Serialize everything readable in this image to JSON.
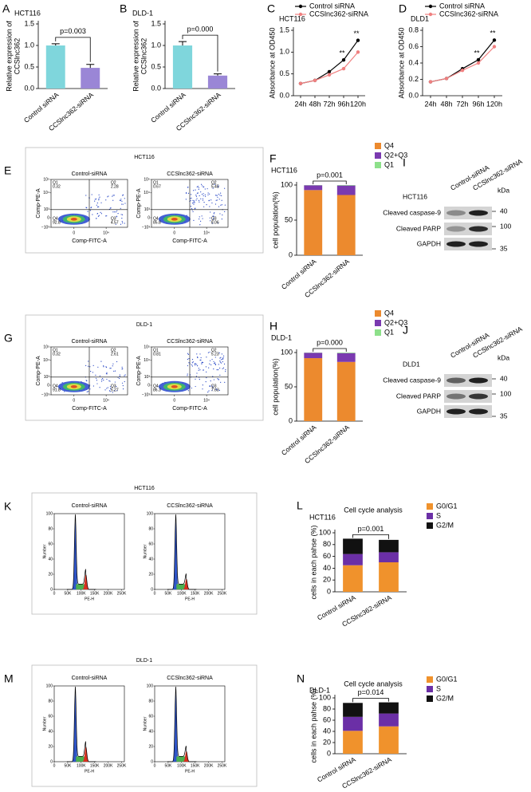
{
  "chart_data": [
    {
      "panel": "A",
      "type": "bar",
      "subtitle": "HCT116",
      "y_label": [
        "Relative expression of",
        "CCSlnc362"
      ],
      "categories": [
        "Control siRNA",
        "CCSlnc362-siRNA"
      ],
      "values": [
        1.0,
        0.48
      ],
      "errors": [
        0.04,
        0.08
      ],
      "colors": [
        "#7fd6dc",
        "#9a86d6"
      ],
      "ylim": [
        0,
        1.5
      ],
      "yticks": [
        {
          "value": 0,
          "label": "0.0"
        },
        {
          "value": 0.5,
          "label": "0.5"
        },
        {
          "value": 1,
          "label": "1.0"
        },
        {
          "value": 1.5,
          "label": "1.5"
        }
      ],
      "p_value": "p=0.003"
    },
    {
      "panel": "B",
      "type": "bar",
      "subtitle": "DLD-1",
      "y_label": [
        "Relative expression of",
        "CCSlnc362"
      ],
      "categories": [
        "Control siRNA",
        "CCSlnc362-siRNA"
      ],
      "values": [
        1.0,
        0.3
      ],
      "errors": [
        0.09,
        0.04
      ],
      "colors": [
        "#7fd6dc",
        "#9a86d6"
      ],
      "ylim": [
        0,
        1.5
      ],
      "yticks": [
        {
          "value": 0,
          "label": "0.0"
        },
        {
          "value": 0.5,
          "label": "0.5"
        },
        {
          "value": 1,
          "label": "1.0"
        },
        {
          "value": 1.5,
          "label": "1.5"
        }
      ],
      "p_value": "p=0.000"
    },
    {
      "panel": "C",
      "type": "line",
      "subtitle": "HCT116",
      "y_label": [
        "Absorbance at OD450"
      ],
      "categories": [
        "24h",
        "48h",
        "72h",
        "96h",
        "120h"
      ],
      "series": [
        {
          "name": "Control siRNA",
          "color": "#000000",
          "values": [
            0.28,
            0.35,
            0.55,
            0.82,
            1.27
          ]
        },
        {
          "name": "CCSlnc362-siRNA",
          "color": "#f08080",
          "values": [
            0.28,
            0.35,
            0.48,
            0.62,
            1.0
          ]
        }
      ],
      "significance": [
        null,
        null,
        null,
        "**",
        "**"
      ],
      "ylim": [
        0,
        1.5
      ],
      "yticks": [
        {
          "value": 0,
          "label": "0.0"
        },
        {
          "value": 0.5,
          "label": "0.5"
        },
        {
          "value": 1,
          "label": "1.0"
        },
        {
          "value": 1.5,
          "label": "1.5"
        }
      ]
    },
    {
      "panel": "D",
      "type": "line",
      "subtitle": "DLD1",
      "y_label": [
        "Absorbance at OD450"
      ],
      "categories": [
        "24h",
        "48h",
        "72h",
        "96h",
        "120h"
      ],
      "series": [
        {
          "name": "Control siRNA",
          "color": "#000000",
          "values": [
            0.17,
            0.21,
            0.33,
            0.44,
            0.68
          ]
        },
        {
          "name": "CCSlnc362-siRNA",
          "color": "#f08080",
          "values": [
            0.17,
            0.21,
            0.31,
            0.4,
            0.6
          ]
        }
      ],
      "significance": [
        null,
        null,
        null,
        "**",
        "**"
      ],
      "ylim": [
        0,
        0.8
      ],
      "yticks": [
        {
          "value": 0,
          "label": "0.0"
        },
        {
          "value": 0.2,
          "label": "0.2"
        },
        {
          "value": 0.4,
          "label": "0.4"
        },
        {
          "value": 0.6,
          "label": "0.6"
        },
        {
          "value": 0.8,
          "label": "0.8"
        }
      ]
    },
    {
      "panel": "F",
      "type": "stacked_bar",
      "subtitle": "HCT116",
      "y_label": [
        "cell population(%)"
      ],
      "categories": [
        "Control siRNA",
        "CCSlnc362-siRNA"
      ],
      "series": [
        {
          "name": "Q4",
          "color": "#ec8a2e",
          "values": [
            92.8,
            85.8
          ]
        },
        {
          "name": "Q2+Q3",
          "color": "#7a3ab0",
          "values": [
            6.85,
            13.51
          ]
        },
        {
          "name": "Q1",
          "color": "#8de08a",
          "values": [
            0.32,
            0.67
          ]
        }
      ],
      "ylim": [
        0,
        100
      ],
      "yticks": [
        0,
        50,
        100
      ],
      "p_value": "p=0.001"
    },
    {
      "panel": "H",
      "type": "stacked_bar",
      "subtitle": "DLD-1",
      "y_label": [
        "cell population(%)"
      ],
      "categories": [
        "Control siRNA",
        "CCSlnc362-siRNA"
      ],
      "series": [
        {
          "name": "Q4",
          "color": "#ec8a2e",
          "values": [
            91.8,
            86.3
          ]
        },
        {
          "name": "Q2+Q3",
          "color": "#7a3ab0",
          "values": [
            7.88,
            12.86
          ]
        },
        {
          "name": "Q1",
          "color": "#8de08a",
          "values": [
            0.32,
            0.81
          ]
        }
      ],
      "ylim": [
        0,
        100
      ],
      "yticks": [
        0,
        50,
        100
      ],
      "p_value": "p=0.000"
    },
    {
      "panel": "L",
      "type": "stacked_bar",
      "title": "Cell cycle analysis",
      "subtitle": "HCT116",
      "y_label": [
        "cells in each pahse (%)"
      ],
      "categories": [
        "Control siRNA",
        "CCSlnc362-siRNA"
      ],
      "series": [
        {
          "name": "G0/G1",
          "color": "#f0922c",
          "values": [
            45,
            50
          ]
        },
        {
          "name": "S",
          "color": "#6b2fa6",
          "values": [
            19,
            17
          ]
        },
        {
          "name": "G2/M",
          "color": "#111111",
          "values": [
            26,
            21
          ]
        }
      ],
      "ylim": [
        0,
        100
      ],
      "yticks": [
        0,
        20,
        40,
        60,
        80,
        100
      ],
      "p_value": "p=0.001"
    },
    {
      "panel": "N",
      "type": "stacked_bar",
      "title": "Cell cycle analysis",
      "subtitle": "DLD-1",
      "y_label": [
        "cells in each pahse (%)"
      ],
      "categories": [
        "Control siRNA",
        "CCSlnc362-siRNA"
      ],
      "series": [
        {
          "name": "G0/G1",
          "color": "#f0922c",
          "values": [
            41,
            49
          ]
        },
        {
          "name": "S",
          "color": "#6b2fa6",
          "values": [
            25,
            23
          ]
        },
        {
          "name": "G2/M",
          "color": "#111111",
          "values": [
            25,
            20
          ]
        }
      ],
      "ylim": [
        0,
        100
      ],
      "yticks": [
        0,
        20,
        40,
        60,
        80,
        100
      ],
      "p_value": "p=0.014"
    }
  ],
  "flow_panels": [
    {
      "panel": "E",
      "title": "HCT116",
      "x_label": "Comp-FITC-A",
      "y_label": "Comp-PE-A",
      "yticks": [
        "10⁵",
        "10⁴",
        "10³",
        "0",
        "−10³"
      ],
      "xticks": [
        "0",
        "10⁴"
      ],
      "quadrant_names": [
        "Q1",
        "Q2",
        "Q3",
        "Q4"
      ],
      "plots": [
        {
          "label": "Control-siRNA",
          "quadrants": [
            "0.32",
            "2.28",
            "4.57",
            "92.8"
          ]
        },
        {
          "label": "CCSlnc362-siRNA",
          "quadrants": [
            "0.67",
            "5.45",
            "8.06",
            "85.8"
          ]
        }
      ]
    },
    {
      "panel": "G",
      "title": "DLD-1",
      "x_label": "Comp-FITC-A",
      "y_label": "Comp-PE-A",
      "yticks": [
        "10⁵",
        "10⁴",
        "10³",
        "0",
        "−10³"
      ],
      "xticks": [
        "0",
        "10⁴"
      ],
      "quadrant_names": [
        "Q1",
        "Q2",
        "Q3",
        "Q4"
      ],
      "plots": [
        {
          "label": "Control-siRNA",
          "quadrants": [
            "0.32",
            "2.61",
            "5.27",
            "91.8"
          ]
        },
        {
          "label": "CCSlnc362-siRNA",
          "quadrants": [
            "0.81",
            "5.23",
            "7.63",
            "86.3"
          ]
        }
      ]
    }
  ],
  "blots": [
    {
      "panel": "I",
      "cell": "HCT116",
      "lanes": [
        "Control-siRNA",
        "CCSlnc362-siRNA"
      ],
      "unit": "kDa",
      "rows": [
        "Cleaved caspase-9",
        "Cleaved PARP",
        "GAPDH"
      ],
      "markers": [
        "40",
        "100",
        "35"
      ]
    },
    {
      "panel": "J",
      "cell": "DLD1",
      "lanes": [
        "Control-siRNA",
        "CCSlnc362-siRNA"
      ],
      "unit": "kDa",
      "rows": [
        "Cleaved caspase-9",
        "Cleaved PARP",
        "GAPDH"
      ],
      "markers": [
        "40",
        "100",
        "35"
      ]
    }
  ],
  "histograms": [
    {
      "panel": "K",
      "title": "HCT116",
      "y_label": "Number",
      "x_label": "PE-H",
      "yticks": [
        "0",
        "20",
        "40",
        "60",
        "80",
        "100"
      ],
      "xticks": [
        "0",
        "50K",
        "100K",
        "150K",
        "200K",
        "250K"
      ],
      "plots": [
        "Control-siRNA",
        "CCSlnc362-siRNA"
      ]
    },
    {
      "panel": "M",
      "title": "DLD-1",
      "y_label": "Number",
      "x_label": "PE-H",
      "yticks": [
        "0",
        "20",
        "40",
        "60",
        "80",
        "100"
      ],
      "xticks": [
        "0",
        "50K",
        "100K",
        "150K",
        "200K",
        "250K"
      ],
      "plots": [
        "Control-siRNA",
        "CCSlnc362-siRNA"
      ]
    }
  ]
}
